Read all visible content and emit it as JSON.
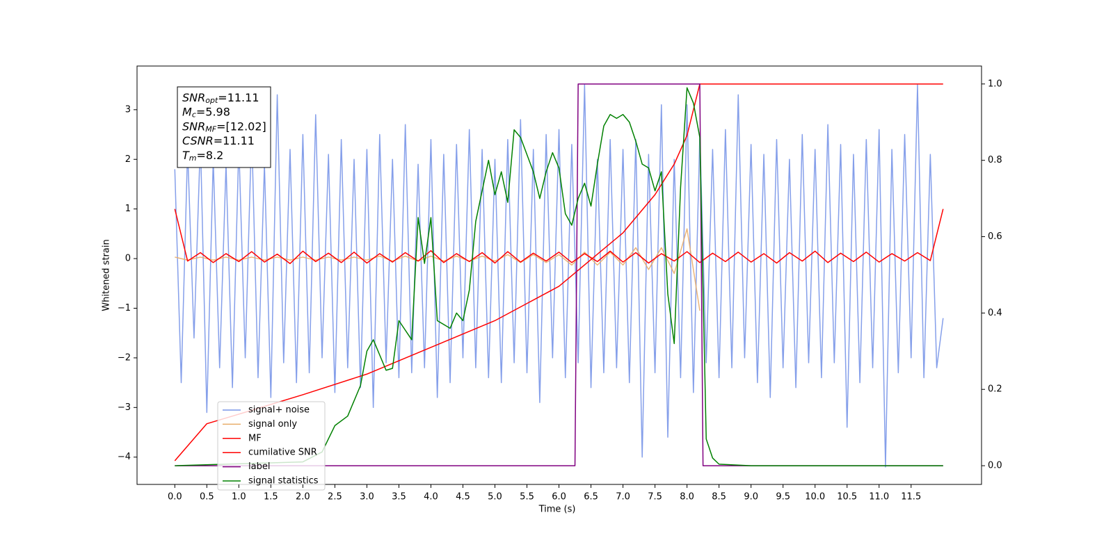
{
  "chart_data": {
    "type": "line",
    "xlabel": "Time (s)",
    "ylabel": "Whitened strain",
    "xlim": [
      -0.59,
      12.6
    ],
    "ylim": [
      -4.55,
      3.88
    ],
    "y2lim": [
      -0.049,
      1.047
    ],
    "xticks": [
      {
        "value": 0,
        "label": "0.0"
      },
      0.5,
      {
        "value": 1,
        "label": "1.0"
      },
      1.5,
      {
        "value": 2,
        "label": "2.0"
      },
      2.5,
      {
        "value": 3,
        "label": "3.0"
      },
      3.5,
      {
        "value": 4,
        "label": "4.0"
      },
      4.5,
      {
        "value": 5,
        "label": "5.0"
      },
      5.5,
      {
        "value": 6,
        "label": "6.0"
      },
      6.5,
      {
        "value": 7,
        "label": "7.0"
      },
      7.5,
      {
        "value": 8,
        "label": "8.0"
      },
      8.5,
      {
        "value": 9,
        "label": "9.0"
      },
      9.5,
      {
        "value": 10,
        "label": "10.0"
      },
      10.5,
      {
        "value": 11,
        "label": "11.0"
      },
      11.5
    ],
    "yticks": [
      {
        "value": -4,
        "label": "−4"
      },
      {
        "value": -3,
        "label": "−3"
      },
      {
        "value": -2,
        "label": "−2"
      },
      {
        "value": -1,
        "label": "−1"
      },
      0,
      1,
      2,
      3
    ],
    "y2ticks": [
      {
        "value": 0,
        "label": "0.0"
      },
      0.2,
      0.4,
      0.6,
      0.8,
      {
        "value": 1,
        "label": "1.0"
      }
    ],
    "annotation": [
      {
        "base": "SNR",
        "sub": "opt",
        "text": "=11.11"
      },
      {
        "base": "M",
        "sub": "c",
        "text": "=5.98"
      },
      {
        "base": "SNR",
        "sub": "MF",
        "text": "=[12.02]"
      },
      {
        "base": "CSNR",
        "sub": null,
        "text": "=11.11"
      },
      {
        "base": "T",
        "sub": "m",
        "text": "=8.2"
      }
    ],
    "legend": "lower left",
    "series": [
      {
        "name": "signal+ noise",
        "color": "#7895e8",
        "x": [
          0.0,
          0.1,
          0.2,
          0.3,
          0.4,
          0.5,
          0.6,
          0.7,
          0.8,
          0.9,
          1.0,
          1.1,
          1.2,
          1.3,
          1.4,
          1.5,
          1.6,
          1.7,
          1.8,
          1.9,
          2.0,
          2.1,
          2.2,
          2.3,
          2.4,
          2.5,
          2.6,
          2.7,
          2.8,
          2.9,
          3.0,
          3.1,
          3.2,
          3.3,
          3.4,
          3.5,
          3.6,
          3.7,
          3.8,
          3.9,
          4.0,
          4.1,
          4.2,
          4.3,
          4.4,
          4.5,
          4.6,
          4.7,
          4.8,
          4.9,
          5.0,
          5.1,
          5.2,
          5.3,
          5.4,
          5.5,
          5.6,
          5.7,
          5.8,
          5.9,
          6.0,
          6.1,
          6.2,
          6.3,
          6.4,
          6.5,
          6.6,
          6.7,
          6.8,
          6.9,
          7.0,
          7.1,
          7.2,
          7.3,
          7.4,
          7.5,
          7.6,
          7.7,
          7.8,
          7.9,
          8.0,
          8.1,
          8.2,
          8.3,
          8.4,
          8.5,
          8.6,
          8.7,
          8.8,
          8.9,
          9.0,
          9.1,
          9.2,
          9.3,
          9.4,
          9.5,
          9.6,
          9.7,
          9.8,
          9.9,
          10.0,
          10.1,
          10.2,
          10.3,
          10.4,
          10.5,
          10.6,
          10.7,
          10.8,
          10.9,
          11.0,
          11.1,
          11.2,
          11.3,
          11.4,
          11.5,
          11.6,
          11.7,
          11.8,
          11.9,
          12.0
        ],
        "values": [
          1.8,
          -2.5,
          2.2,
          -1.6,
          2.4,
          -3.1,
          2.0,
          -2.2,
          1.9,
          -2.6,
          2.3,
          -2.0,
          2.6,
          -2.4,
          1.9,
          -2.8,
          3.3,
          -2.1,
          2.2,
          -2.5,
          2.5,
          -2.3,
          2.9,
          -2.0,
          2.1,
          -2.7,
          2.4,
          -2.2,
          2.0,
          -2.6,
          2.2,
          -3.0,
          2.5,
          -2.1,
          2.0,
          -2.4,
          2.7,
          -2.3,
          1.9,
          -2.2,
          2.4,
          -2.8,
          2.1,
          -2.5,
          2.3,
          -2.0,
          2.6,
          -2.2,
          2.2,
          -2.4,
          2.0,
          -2.5,
          2.4,
          -2.1,
          2.8,
          -2.3,
          2.2,
          -2.9,
          2.5,
          -2.0,
          2.6,
          -2.4,
          2.3,
          -2.1,
          3.5,
          -2.6,
          2.0,
          -2.3,
          2.4,
          -2.2,
          2.2,
          -2.5,
          2.4,
          -4.0,
          2.1,
          -2.3,
          3.1,
          -3.6,
          2.0,
          -2.4,
          3.1,
          -2.7,
          2.5,
          -2.1,
          2.2,
          -2.4,
          2.6,
          -2.2,
          3.3,
          -2.0,
          2.3,
          -2.5,
          2.1,
          -2.8,
          2.4,
          -2.2,
          2.0,
          -2.6,
          2.5,
          -2.1,
          2.2,
          -2.4,
          2.7,
          -2.1,
          2.3,
          -3.4,
          2.1,
          -2.5,
          2.4,
          -2.2,
          2.6,
          -4.2,
          2.2,
          -2.3,
          2.5,
          -2.0,
          3.5,
          -2.4,
          2.1,
          -2.2,
          -1.2
        ]
      },
      {
        "name": "signal only",
        "color": "#e9ad6a",
        "x": [
          0.0,
          0.2,
          0.4,
          0.6,
          0.8,
          1.0,
          1.2,
          1.4,
          1.6,
          1.8,
          2.0,
          2.2,
          2.4,
          2.6,
          2.8,
          3.0,
          3.2,
          3.4,
          3.6,
          3.8,
          4.0,
          4.2,
          4.4,
          4.6,
          4.8,
          5.0,
          5.2,
          5.4,
          5.6,
          5.8,
          6.0,
          6.2,
          6.4,
          6.6,
          6.8,
          7.0,
          7.2,
          7.4,
          7.6,
          7.8,
          8.0,
          8.2
        ],
        "values": [
          0.03,
          -0.03,
          0.03,
          -0.03,
          0.03,
          -0.03,
          0.03,
          -0.03,
          0.03,
          -0.03,
          0.03,
          -0.03,
          0.03,
          -0.03,
          0.03,
          -0.03,
          0.05,
          -0.05,
          0.05,
          -0.05,
          0.05,
          -0.05,
          0.05,
          -0.05,
          0.05,
          -0.05,
          0.08,
          -0.08,
          0.08,
          -0.08,
          0.08,
          -0.13,
          0.13,
          -0.13,
          0.13,
          -0.13,
          0.22,
          -0.22,
          0.22,
          -0.3,
          0.6,
          -1.05
        ]
      },
      {
        "name": "MF",
        "color": "#ff0000",
        "x": [
          0.0,
          0.2,
          0.4,
          0.6,
          0.8,
          1.0,
          1.2,
          1.4,
          1.6,
          1.8,
          2.0,
          2.2,
          2.4,
          2.6,
          2.8,
          3.0,
          3.2,
          3.4,
          3.6,
          3.8,
          4.0,
          4.2,
          4.4,
          4.6,
          4.8,
          5.0,
          5.2,
          5.4,
          5.6,
          5.8,
          6.0,
          6.2,
          6.4,
          6.6,
          6.8,
          7.0,
          7.2,
          7.4,
          7.6,
          7.8,
          8.0,
          8.2,
          8.4,
          8.6,
          8.8,
          9.0,
          9.2,
          9.4,
          9.6,
          9.8,
          10.0,
          10.2,
          10.4,
          10.6,
          10.8,
          11.0,
          11.2,
          11.4,
          11.6,
          11.8,
          12.0
        ],
        "values": [
          1.0,
          -0.05,
          0.12,
          -0.08,
          0.1,
          -0.06,
          0.14,
          -0.07,
          0.09,
          -0.1,
          0.15,
          -0.06,
          0.11,
          -0.08,
          0.13,
          -0.09,
          0.1,
          -0.07,
          0.12,
          -0.05,
          0.16,
          -0.08,
          0.1,
          -0.06,
          0.12,
          -0.09,
          0.14,
          -0.07,
          0.11,
          -0.05,
          0.13,
          -0.08,
          0.1,
          -0.06,
          0.15,
          -0.07,
          0.12,
          -0.09,
          0.1,
          -0.05,
          0.14,
          -0.08,
          0.11,
          -0.06,
          0.13,
          -0.07,
          0.1,
          -0.09,
          0.12,
          -0.05,
          0.15,
          -0.08,
          0.11,
          -0.06,
          0.13,
          -0.07,
          0.1,
          -0.05,
          0.12,
          -0.04,
          1.0
        ]
      },
      {
        "name": "cumilative SNR",
        "color": "#ff0000",
        "axis": "y2",
        "x": [
          0.0,
          0.5,
          1.0,
          2.0,
          3.0,
          4.0,
          5.0,
          6.0,
          6.5,
          7.0,
          7.5,
          7.8,
          8.0,
          8.2,
          12.0
        ],
        "values": [
          0.013,
          0.11,
          0.135,
          0.186,
          0.24,
          0.31,
          0.38,
          0.47,
          0.54,
          0.61,
          0.71,
          0.79,
          0.865,
          1.0,
          1.0
        ]
      },
      {
        "name": "label",
        "color": "#800080",
        "axis": "y2",
        "x": [
          0.0,
          6.25,
          6.3,
          8.2,
          8.25,
          12.0
        ],
        "values": [
          0,
          0,
          1,
          1,
          0,
          0
        ]
      },
      {
        "name": "signal statistics",
        "color": "#008000",
        "axis": "y2",
        "x": [
          0.0,
          2.0,
          2.3,
          2.5,
          2.7,
          2.9,
          3.0,
          3.1,
          3.3,
          3.4,
          3.5,
          3.7,
          3.8,
          3.9,
          4.0,
          4.1,
          4.3,
          4.4,
          4.5,
          4.6,
          4.7,
          4.9,
          5.0,
          5.1,
          5.2,
          5.3,
          5.4,
          5.6,
          5.7,
          5.8,
          5.9,
          6.0,
          6.1,
          6.2,
          6.3,
          6.4,
          6.5,
          6.6,
          6.7,
          6.8,
          6.9,
          7.0,
          7.1,
          7.2,
          7.3,
          7.4,
          7.5,
          7.6,
          7.7,
          7.8,
          7.9,
          8.0,
          8.1,
          8.2,
          8.3,
          8.4,
          8.5,
          9.0,
          12.0
        ],
        "values": [
          0,
          0.01,
          0.036,
          0.105,
          0.13,
          0.21,
          0.3,
          0.33,
          0.25,
          0.255,
          0.38,
          0.33,
          0.65,
          0.53,
          0.65,
          0.38,
          0.36,
          0.4,
          0.38,
          0.46,
          0.64,
          0.8,
          0.71,
          0.77,
          0.69,
          0.88,
          0.86,
          0.77,
          0.7,
          0.77,
          0.82,
          0.78,
          0.66,
          0.63,
          0.7,
          0.74,
          0.68,
          0.79,
          0.89,
          0.92,
          0.91,
          0.92,
          0.9,
          0.85,
          0.79,
          0.78,
          0.72,
          0.77,
          0.45,
          0.32,
          0.73,
          0.99,
          0.95,
          0.86,
          0.07,
          0.02,
          0.004,
          0,
          0
        ]
      }
    ]
  }
}
